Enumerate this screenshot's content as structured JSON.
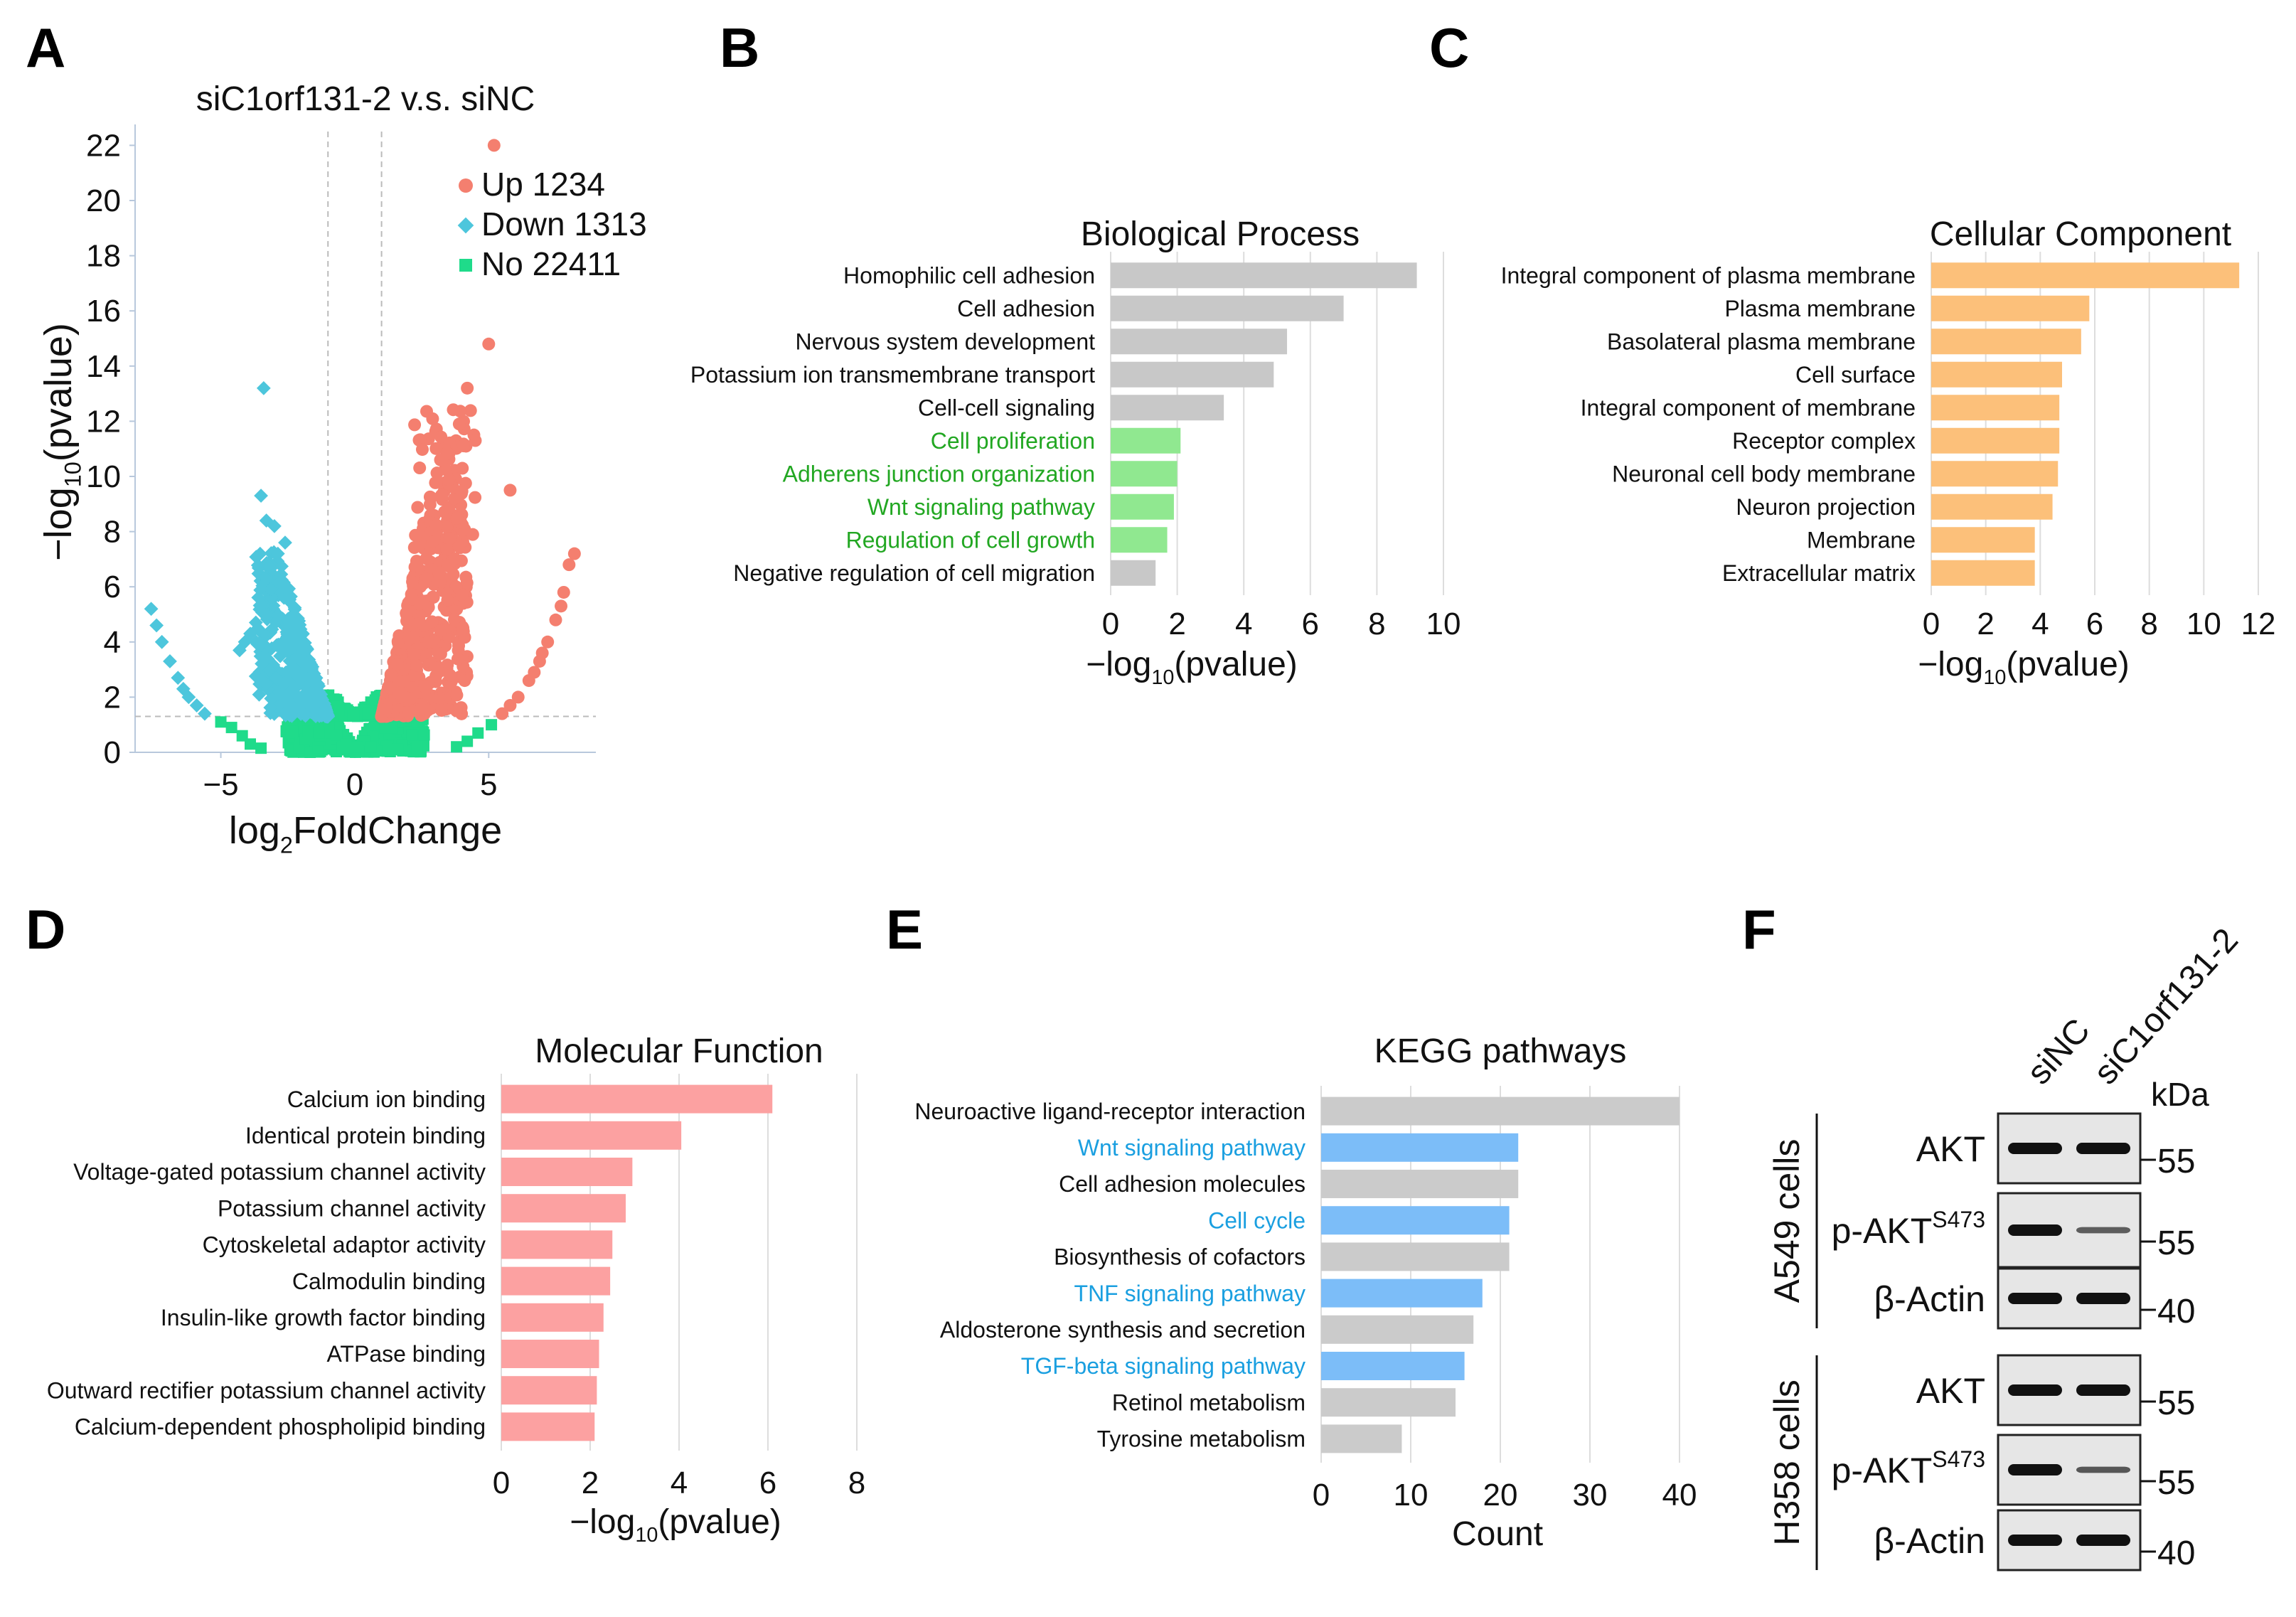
{
  "panels": {
    "A": "A",
    "B": "B",
    "C": "C",
    "D": "D",
    "E": "E",
    "F": "F"
  },
  "colors": {
    "up": "#f47f6f",
    "down": "#4dc6dc",
    "no": "#1fdb8a",
    "bp_gray": "#c8c8c8",
    "bp_green": "#90e890",
    "bp_green_text": "#22a722",
    "cc": "#fcc07a",
    "mf": "#fca1a1",
    "kegg_gray": "#cbcbcb",
    "kegg_blue": "#7cbdf8",
    "kegg_blue_text": "#1a9fe0",
    "grid": "#dddddd"
  },
  "chart_data": [
    {
      "id": "volcano",
      "type": "scatter",
      "title": "siC1orf131-2 v.s. siNC",
      "xlabel": "log2FoldChange",
      "ylabel": "-log10(pvalue)",
      "xlim": [
        -8.2,
        9
      ],
      "ylim": [
        0,
        22.5
      ],
      "xticks": [
        "-5",
        "0",
        "5"
      ],
      "xtick_values": [
        -5,
        0,
        5
      ],
      "yticks": [
        "0",
        "2",
        "4",
        "6",
        "8",
        "10",
        "12",
        "14",
        "16",
        "18",
        "20",
        "22"
      ],
      "ytick_values": [
        0,
        2,
        4,
        6,
        8,
        10,
        12,
        14,
        16,
        18,
        20,
        22
      ],
      "thresholds": {
        "fc": [
          -1,
          1
        ],
        "p": 1.3
      },
      "legend": [
        {
          "label": "Up 1234",
          "group": "up"
        },
        {
          "label": "Down 1313",
          "group": "down"
        },
        {
          "label": "No 22411",
          "group": "no"
        }
      ],
      "legend_position": "top-right"
    },
    {
      "id": "bp",
      "type": "bar",
      "orientation": "horizontal",
      "title": "Biological Process",
      "xlabel": "-log10(pvalue)",
      "xlim": [
        0,
        10
      ],
      "xticks": [
        "0",
        "2",
        "4",
        "6",
        "8",
        "10"
      ],
      "categories": [
        "Homophilic cell adhesion",
        "Cell adhesion",
        "Nervous system development",
        "Potassium ion transmembrane transport",
        "Cell-cell signaling",
        "Cell proliferation",
        "Adherens junction organization",
        "Wnt signaling pathway",
        "Regulation of cell growth",
        "Negative regulation of cell migration"
      ],
      "values": [
        9.2,
        7.0,
        5.3,
        4.9,
        3.4,
        2.1,
        2.0,
        1.9,
        1.7,
        1.35
      ],
      "highlight": [
        false,
        false,
        false,
        false,
        false,
        true,
        true,
        true,
        true,
        false
      ]
    },
    {
      "id": "cc",
      "type": "bar",
      "orientation": "horizontal",
      "title": "Cellular Component",
      "xlabel": "-log10(pvalue)",
      "xlim": [
        0,
        12
      ],
      "xticks": [
        "0",
        "2",
        "4",
        "6",
        "8",
        "10",
        "12"
      ],
      "categories": [
        "Integral component of plasma membrane",
        "Plasma membrane",
        "Basolateral plasma membrane",
        "Cell surface",
        "Integral component of membrane",
        "Receptor complex",
        "Neuronal cell body membrane",
        "Neuron projection",
        "Membrane",
        "Extracellular matrix"
      ],
      "values": [
        11.3,
        5.8,
        5.5,
        4.8,
        4.7,
        4.7,
        4.65,
        4.45,
        3.8,
        3.8
      ],
      "highlight": [
        false,
        false,
        false,
        false,
        false,
        false,
        false,
        false,
        false,
        false
      ]
    },
    {
      "id": "mf",
      "type": "bar",
      "orientation": "horizontal",
      "title": "Molecular Function",
      "xlabel": "-log10(pvalue)",
      "xlim": [
        0,
        8
      ],
      "xticks": [
        "0",
        "2",
        "4",
        "6",
        "8"
      ],
      "categories": [
        "Calcium ion binding",
        "Identical protein binding",
        "Voltage-gated potassium channel activity",
        "Potassium channel activity",
        "Cytoskeletal adaptor activity",
        "Calmodulin binding",
        "Insulin-like growth factor binding",
        "ATPase binding",
        "Outward rectifier potassium channel activity",
        "Calcium-dependent phospholipid binding"
      ],
      "values": [
        6.1,
        4.05,
        2.95,
        2.8,
        2.5,
        2.45,
        2.3,
        2.2,
        2.15,
        2.1
      ],
      "highlight": [
        false,
        false,
        false,
        false,
        false,
        false,
        false,
        false,
        false,
        false
      ]
    },
    {
      "id": "kegg",
      "type": "bar",
      "orientation": "horizontal",
      "title": "KEGG pathways",
      "xlabel": "Count",
      "xlim": [
        0,
        40
      ],
      "xticks": [
        "0",
        "10",
        "20",
        "30",
        "40"
      ],
      "categories": [
        "Neuroactive ligand-receptor interaction",
        "Wnt signaling pathway",
        "Cell adhesion molecules",
        "Cell cycle",
        "Biosynthesis of cofactors",
        "TNF signaling pathway",
        "Aldosterone synthesis and secretion",
        "TGF-beta signaling pathway",
        "Retinol metabolism",
        "Tyrosine metabolism"
      ],
      "values": [
        40,
        22,
        22,
        21,
        21,
        18,
        17,
        16,
        15,
        9
      ],
      "highlight": [
        false,
        true,
        false,
        true,
        false,
        true,
        false,
        true,
        false,
        false
      ]
    }
  ],
  "western": {
    "lanes": [
      "siNC",
      "siC1orf131-2"
    ],
    "kda_label": "kDa",
    "groups": [
      {
        "cell_line": "A549 cells",
        "rows": [
          {
            "protein": "AKT",
            "sup": "",
            "kda": "55",
            "intensity": [
              1.0,
              1.0
            ]
          },
          {
            "protein": "p-AKT",
            "sup": "S473",
            "kda": "55",
            "intensity": [
              1.0,
              0.45
            ]
          },
          {
            "protein": "β-Actin",
            "sup": "",
            "kda": "40",
            "intensity": [
              1.0,
              1.0
            ]
          }
        ]
      },
      {
        "cell_line": "H358 cells",
        "rows": [
          {
            "protein": "AKT",
            "sup": "",
            "kda": "55",
            "intensity": [
              1.0,
              1.0
            ]
          },
          {
            "protein": "p-AKT",
            "sup": "S473",
            "kda": "55",
            "intensity": [
              1.0,
              0.5
            ]
          },
          {
            "protein": "β-Actin",
            "sup": "",
            "kda": "40",
            "intensity": [
              1.0,
              1.0
            ]
          }
        ]
      }
    ]
  }
}
